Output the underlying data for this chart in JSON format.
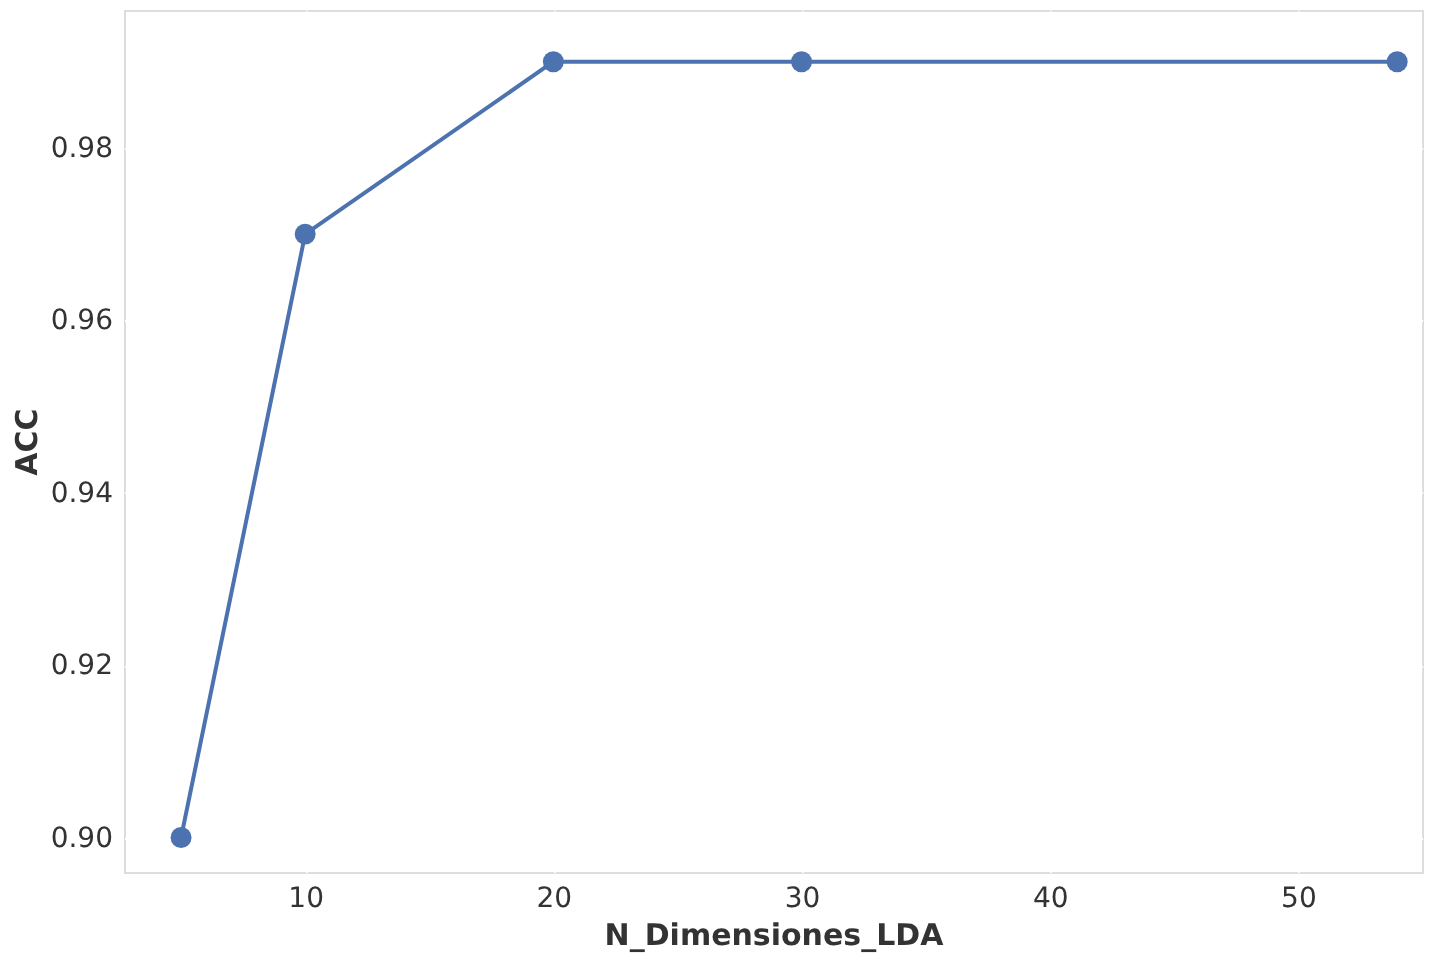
{
  "chart_data": {
    "type": "line",
    "xlabel": "N_Dimensiones_LDA",
    "ylabel": "ACC",
    "x": [
      5,
      10,
      20,
      30,
      54
    ],
    "series": [
      {
        "color": "#4c72b0",
        "values": [
          0.9,
          0.97,
          0.99,
          0.99,
          0.99
        ]
      }
    ],
    "xlim": [
      2.7,
      55.0
    ],
    "ylim": [
      0.896,
      0.996
    ],
    "xticks": [
      10,
      20,
      30,
      40,
      50
    ],
    "yticks": [
      {
        "value": 0.9,
        "label": "0.90"
      },
      {
        "value": 0.92,
        "label": "0.92"
      },
      {
        "value": 0.94,
        "label": "0.94"
      },
      {
        "value": 0.96,
        "label": "0.96"
      },
      {
        "value": 0.98,
        "label": "0.98"
      }
    ],
    "grid": true,
    "marker": "circle",
    "line_style": "solid"
  }
}
